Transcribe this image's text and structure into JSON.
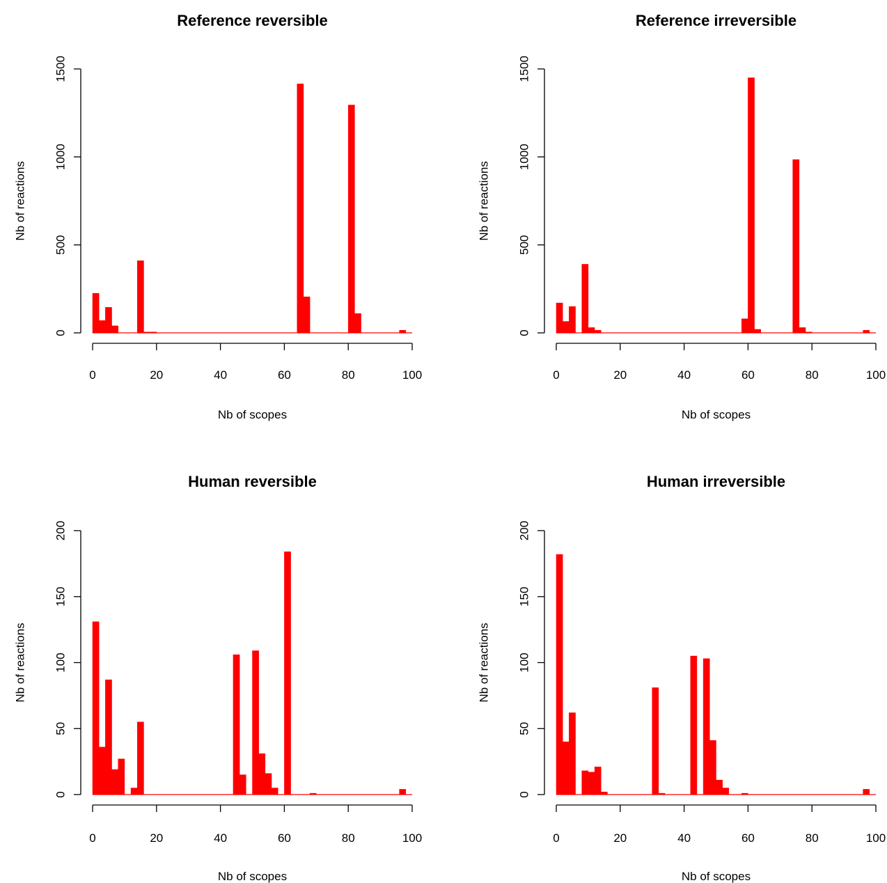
{
  "bar_color": "#ff0000",
  "chart_data": [
    {
      "type": "bar",
      "title": "Reference reversible",
      "xlabel": "Nb of scopes",
      "ylabel": "Nb of reactions",
      "xlim": [
        0,
        100
      ],
      "ylim": [
        0,
        1500
      ],
      "xticks": [
        "0",
        "20",
        "40",
        "60",
        "80",
        "100"
      ],
      "yticks": [
        "0",
        "500",
        "1000",
        "1500"
      ],
      "bin_width": 2,
      "bin_start": 0,
      "values": [
        225,
        70,
        145,
        40,
        0,
        0,
        0,
        410,
        5,
        5,
        0,
        0,
        0,
        0,
        0,
        0,
        0,
        0,
        0,
        0,
        0,
        0,
        0,
        0,
        0,
        0,
        0,
        0,
        0,
        0,
        0,
        0,
        1415,
        205,
        0,
        0,
        0,
        0,
        0,
        0,
        1295,
        110,
        0,
        0,
        0,
        0,
        0,
        0,
        15,
        0
      ]
    },
    {
      "type": "bar",
      "title": "Reference irreversible",
      "xlabel": "Nb of scopes",
      "ylabel": "Nb of reactions",
      "xlim": [
        0,
        100
      ],
      "ylim": [
        0,
        1500
      ],
      "xticks": [
        "0",
        "20",
        "40",
        "60",
        "80",
        "100"
      ],
      "yticks": [
        "0",
        "500",
        "1000",
        "1500"
      ],
      "bin_width": 2,
      "bin_start": 0,
      "values": [
        170,
        65,
        150,
        0,
        390,
        30,
        15,
        0,
        0,
        0,
        0,
        0,
        0,
        0,
        0,
        0,
        0,
        0,
        0,
        0,
        0,
        0,
        0,
        0,
        0,
        0,
        0,
        0,
        0,
        80,
        1450,
        20,
        0,
        0,
        0,
        0,
        0,
        985,
        30,
        5,
        0,
        0,
        0,
        0,
        0,
        0,
        0,
        0,
        15,
        0
      ]
    },
    {
      "type": "bar",
      "title": "Human reversible",
      "xlabel": "Nb of scopes",
      "ylabel": "Nb of reactions",
      "xlim": [
        0,
        100
      ],
      "ylim": [
        0,
        200
      ],
      "xticks": [
        "0",
        "20",
        "40",
        "60",
        "80",
        "100"
      ],
      "yticks": [
        "0",
        "50",
        "100",
        "150",
        "200"
      ],
      "bin_width": 2,
      "bin_start": 0,
      "values": [
        131,
        36,
        87,
        19,
        27,
        0,
        5,
        55,
        0,
        0,
        0,
        0,
        0,
        0,
        0,
        0,
        0,
        0,
        0,
        0,
        0,
        0,
        106,
        15,
        0,
        109,
        31,
        16,
        5,
        0,
        184,
        0,
        0,
        0,
        1,
        0,
        0,
        0,
        0,
        0,
        0,
        0,
        0,
        0,
        0,
        0,
        0,
        0,
        4,
        0
      ]
    },
    {
      "type": "bar",
      "title": "Human irreversible",
      "xlabel": "Nb of scopes",
      "ylabel": "Nb of reactions",
      "xlim": [
        0,
        100
      ],
      "ylim": [
        0,
        200
      ],
      "xticks": [
        "0",
        "20",
        "40",
        "60",
        "80",
        "100"
      ],
      "yticks": [
        "0",
        "50",
        "100",
        "150",
        "200"
      ],
      "bin_width": 2,
      "bin_start": 0,
      "values": [
        182,
        40,
        62,
        0,
        18,
        17,
        21,
        2,
        0,
        0,
        0,
        0,
        0,
        0,
        0,
        81,
        1,
        0,
        0,
        0,
        0,
        105,
        0,
        103,
        41,
        11,
        5,
        0,
        0,
        1,
        0,
        0,
        0,
        0,
        0,
        0,
        0,
        0,
        0,
        0,
        0,
        0,
        0,
        0,
        0,
        0,
        0,
        0,
        4,
        0
      ]
    }
  ]
}
